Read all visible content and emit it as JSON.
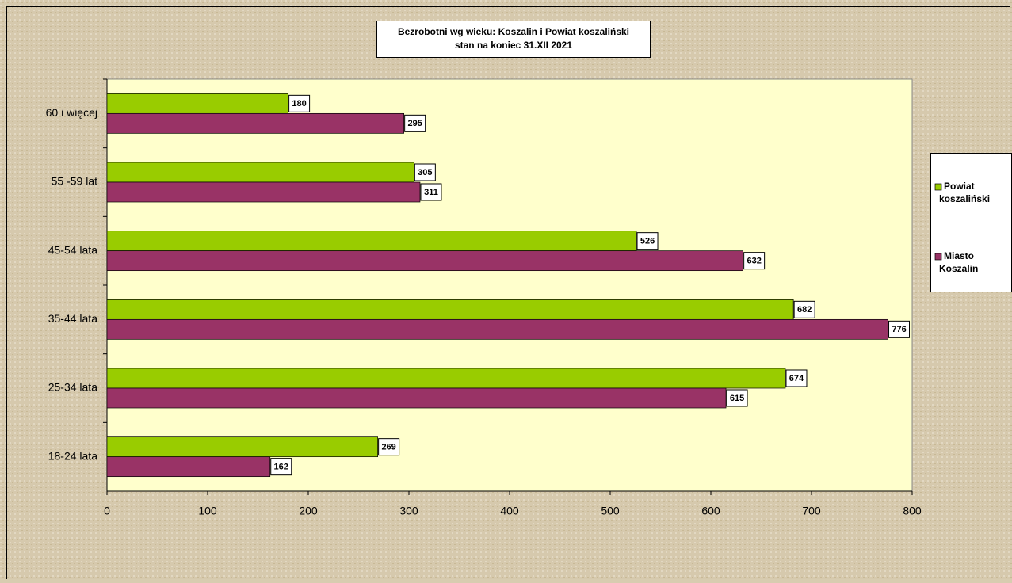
{
  "chart_data": {
    "type": "bar",
    "orientation": "horizontal",
    "title": "Bezrobotni wg wieku: Koszalin i Powiat koszaliński",
    "subtitle": "stan na koniec 31.XII 2021",
    "categories": [
      "60 i więcej",
      "55 -59 lat",
      "45-54 lata",
      "35-44 lata",
      "25-34 lata",
      "18-24 lata"
    ],
    "series": [
      {
        "name": "Powiat koszaliński",
        "color": "#99cc00",
        "values": [
          180,
          305,
          526,
          682,
          674,
          269
        ]
      },
      {
        "name": "Miasto Koszalin",
        "color": "#993366",
        "values": [
          295,
          311,
          632,
          776,
          615,
          162
        ]
      }
    ],
    "xlim": [
      0,
      800
    ],
    "xticks": [
      0,
      100,
      200,
      300,
      400,
      500,
      600,
      700,
      800
    ],
    "legend": "right",
    "plot_background": "#ffffcc"
  }
}
